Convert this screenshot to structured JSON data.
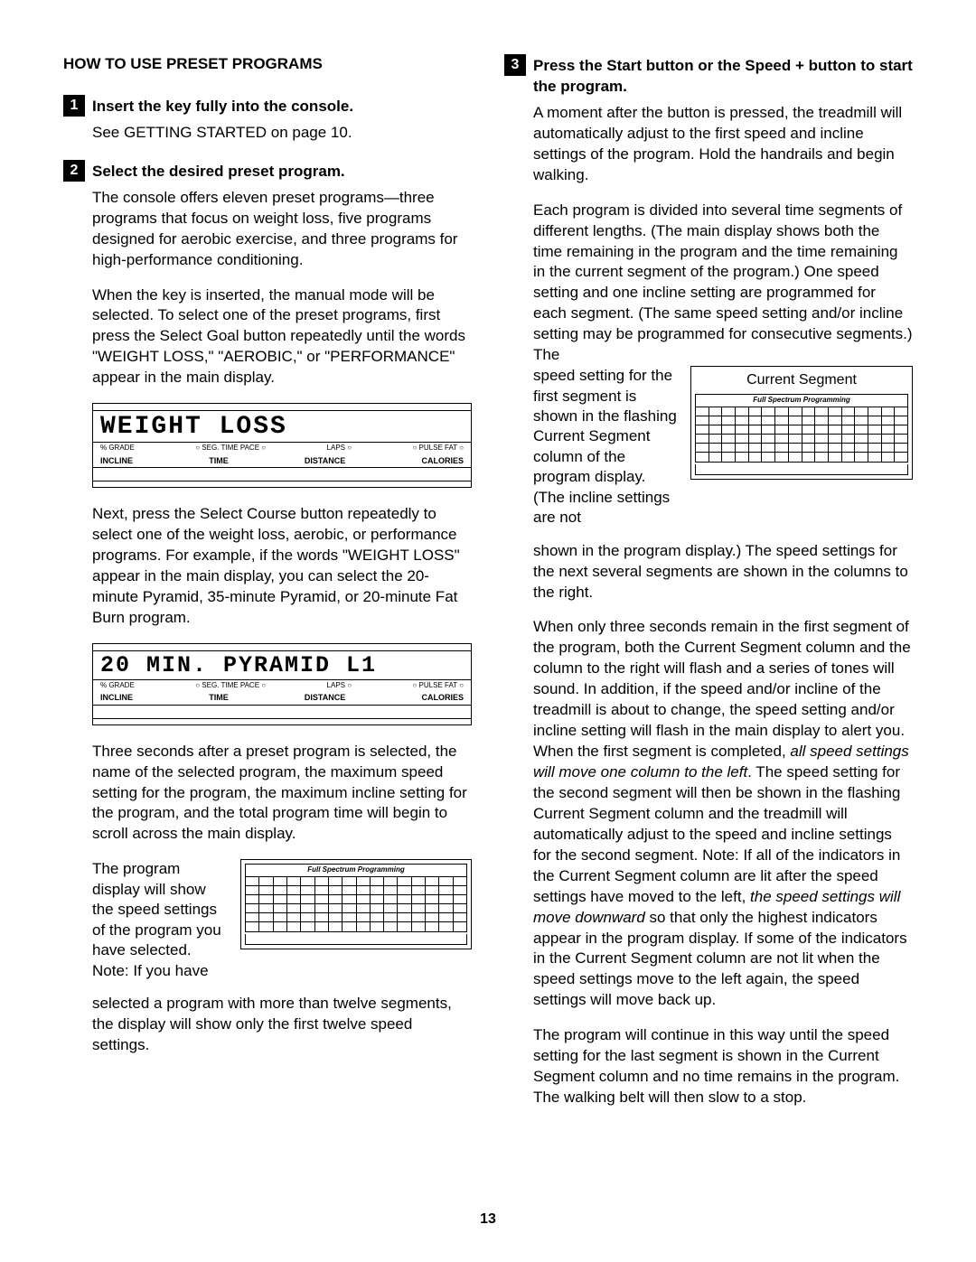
{
  "page_number": "13",
  "left": {
    "title": "HOW TO USE PRESET PROGRAMS",
    "step1": {
      "num": "1",
      "title": "Insert the key fully into the console.",
      "body": "See GETTING STARTED on page 10."
    },
    "step2": {
      "num": "2",
      "title": "Select the desired preset program.",
      "p1": "The console offers eleven preset programs—three programs that focus on weight loss, five programs designed for aerobic exercise, and three programs for high-performance conditioning.",
      "p2": "When the key is inserted, the manual mode will be selected. To select one of the preset programs, first press the Select Goal button repeatedly until the words \"WEIGHT LOSS,\" \"AEROBIC,\" or \"PERFORMANCE\" appear in the main display.",
      "lcd1_text": "WEIGHT LOSS",
      "lcd_labels_r1": {
        "a": "% GRADE",
        "b": "○ SEG. TIME  PACE ○",
        "c": "LAPS ○",
        "d": "○ PULSE  FAT ○"
      },
      "lcd_labels_r2": {
        "a": "INCLINE",
        "b": "TIME",
        "c": "DISTANCE",
        "d": "CALORIES"
      },
      "p3": "Next, press the Select Course button repeatedly to select one of the weight loss, aerobic, or performance programs. For example, if the words \"WEIGHT LOSS\" appear in the main display, you can select the 20-minute Pyramid, 35-minute Pyramid, or 20-minute Fat Burn program.",
      "lcd2_text": "20 MIN. PYRAMID L1",
      "p4": "Three seconds after a preset program is selected, the name of the selected program, the maximum speed setting for the program, the maximum incline setting for the program, and the total program time will begin to scroll across the main display.",
      "prog_side_text": "The program display will show the speed settings of the program you have selected. Note: If you have",
      "prog_sub": "Full Spectrum Programming",
      "p5": "selected a program with more than twelve segments, the display will show only the first twelve speed settings."
    }
  },
  "right": {
    "step3": {
      "num": "3",
      "title": "Press the Start button or the Speed + button to start the program.",
      "p1": "A moment after the button is pressed, the treadmill will automatically adjust to the first speed and incline settings of the program. Hold the handrails and begin walking.",
      "p2a": "Each program is divided into several time segments of different lengths. (The main display shows both the time remaining in the program and the time remaining in the current segment of the program.) One speed setting and one incline setting are programmed for each segment. (The same speed setting and/or incline setting may be programmed for consecutive segments.) The",
      "seg_side_text": "speed setting for the first segment is shown in the flashing Current Segment column of the program display. (The incline settings are not",
      "seg_title": "Current Segment",
      "seg_sub": "Full Spectrum Programming",
      "p2b": "shown in the program display.) The speed settings for the next several segments are shown in the columns to the right.",
      "p3a": "When only three seconds remain in the first segment of the program, both the Current Segment column and the column to the right will flash and a series of tones will sound. In addition, if the speed and/or incline of the treadmill is about to change, the speed setting and/or incline setting will flash in the main display to alert you. When the first segment is completed, ",
      "p3b": "all speed settings will move one column to the left",
      "p3c": ". The speed setting for the second segment will then be shown in the flashing Current Segment column and the treadmill will automatically adjust to the speed and incline settings for the second segment. Note: If all of the indicators in the Current Segment column are lit after the speed settings have moved to the left, ",
      "p3d": "the speed settings will move downward",
      "p3e": " so that only the highest indicators appear in the program display. If some of the indicators in the Current Segment column are not lit when the speed settings move to the left again, the speed settings will move back up.",
      "p4": "The program will continue in this way until the speed setting for the last segment is shown in the Current Segment column and no time remains in the program. The walking belt will then slow to a stop."
    }
  },
  "grid": {
    "cols": 16,
    "rows": 6
  }
}
